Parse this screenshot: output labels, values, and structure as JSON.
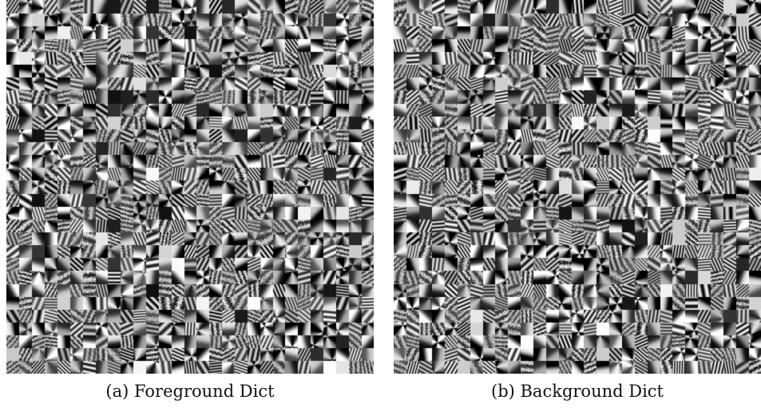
{
  "figure": {
    "panels": [
      {
        "caption": "(a) Foreground Dict"
      },
      {
        "caption": "(b) Background Dict"
      }
    ]
  }
}
